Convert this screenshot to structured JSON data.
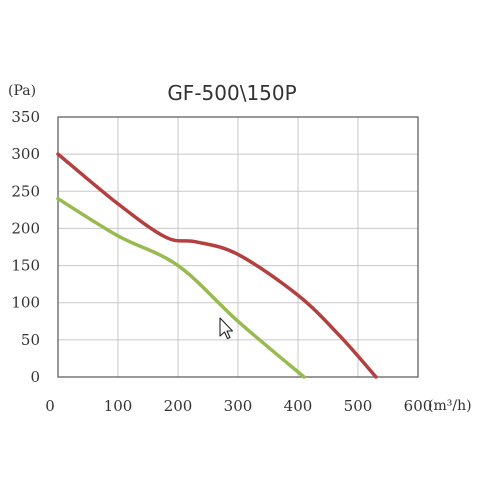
{
  "chart_data": {
    "type": "line",
    "title": "GF-500\\150P",
    "ylabel": "(Pa)",
    "xlabel": "(m³/h)",
    "xlim": [
      0,
      600
    ],
    "ylim": [
      0,
      350
    ],
    "x_ticks": [
      0,
      100,
      200,
      300,
      400,
      500,
      600
    ],
    "y_ticks": [
      0,
      50,
      100,
      150,
      200,
      250,
      300,
      350
    ],
    "x_tick_labels": [
      "0",
      "100",
      "200",
      "300",
      "400",
      "500",
      "600"
    ],
    "y_tick_labels": [
      "0",
      "50",
      "100",
      "150",
      "200",
      "250",
      "300",
      "350"
    ],
    "grid": true,
    "legend": "none",
    "series": [
      {
        "color": "#b3403f",
        "x": [
          0,
          100,
          180,
          230,
          300,
          400,
          470,
          530
        ],
        "y": [
          300,
          233,
          188,
          182,
          165,
          110,
          55,
          0
        ]
      },
      {
        "color": "#98bb4f",
        "x": [
          0,
          100,
          200,
          300,
          410
        ],
        "y": [
          240,
          190,
          150,
          75,
          0
        ]
      }
    ]
  },
  "cursor": {
    "icon": "mouse-pointer-icon"
  }
}
